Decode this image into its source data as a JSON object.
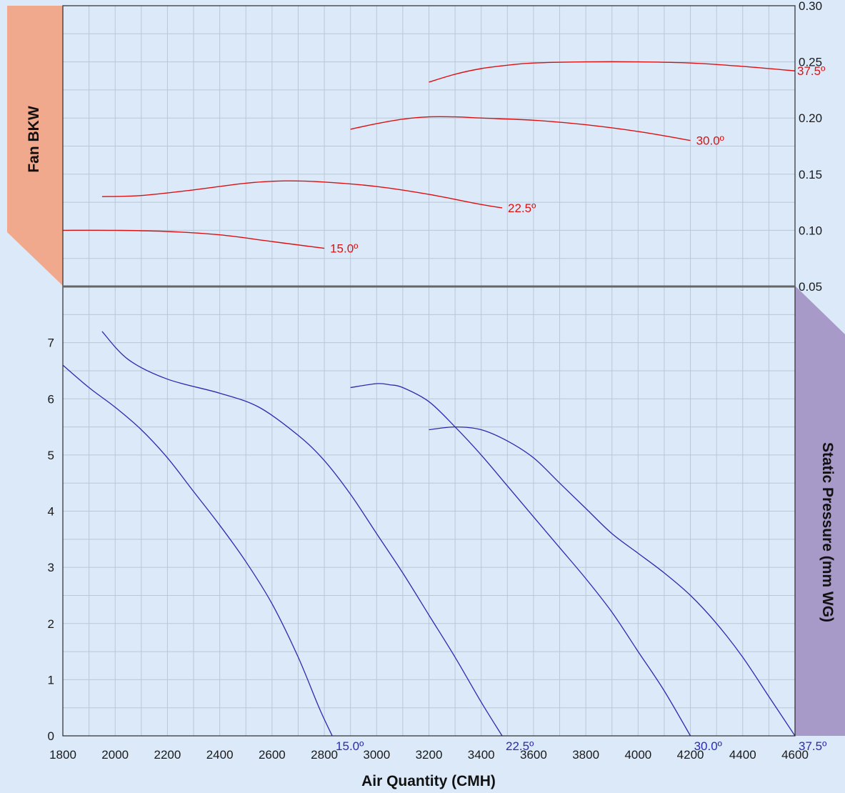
{
  "chart_data": [
    {
      "type": "line",
      "panel": "top",
      "ylabel": "Fan BKW",
      "y_axis_side": "right",
      "ylim": [
        0.05,
        0.3
      ],
      "y_ticks": [
        "0.05",
        "0.10",
        "0.15",
        "0.20",
        "0.25",
        "0.30"
      ],
      "xlim": [
        1800,
        4600
      ],
      "grid": true,
      "color": "#dd1111",
      "series": [
        {
          "name": "15.0º",
          "x": [
            1800,
            2000,
            2200,
            2400,
            2600,
            2800
          ],
          "y": [
            0.1,
            0.1,
            0.099,
            0.096,
            0.09,
            0.084
          ]
        },
        {
          "name": "22.5º",
          "x": [
            1950,
            2100,
            2300,
            2500,
            2650,
            2800,
            3000,
            3200,
            3400,
            3480
          ],
          "y": [
            0.13,
            0.131,
            0.136,
            0.142,
            0.144,
            0.143,
            0.139,
            0.132,
            0.123,
            0.12
          ]
        },
        {
          "name": "30.0º",
          "x": [
            2900,
            3000,
            3100,
            3200,
            3300,
            3400,
            3600,
            3800,
            4000,
            4200
          ],
          "y": [
            0.19,
            0.195,
            0.199,
            0.201,
            0.201,
            0.2,
            0.198,
            0.194,
            0.188,
            0.18
          ]
        },
        {
          "name": "37.5º",
          "x": [
            3200,
            3300,
            3400,
            3500,
            3600,
            3800,
            4000,
            4200,
            4400,
            4600
          ],
          "y": [
            0.232,
            0.239,
            0.244,
            0.247,
            0.249,
            0.25,
            0.25,
            0.249,
            0.246,
            0.242
          ]
        }
      ]
    },
    {
      "type": "line",
      "panel": "bottom",
      "ylabel": "Static Pressure (mm WG)",
      "xlabel": "Air Quantity (CMH)",
      "ylim": [
        0,
        8
      ],
      "y_ticks": [
        "0",
        "1",
        "2",
        "3",
        "4",
        "5",
        "6",
        "7"
      ],
      "xlim": [
        1800,
        4600
      ],
      "x_ticks": [
        "1800",
        "2000",
        "2200",
        "2400",
        "2600",
        "2800",
        "3000",
        "3200",
        "3400",
        "3600",
        "3800",
        "4000",
        "4200",
        "4400",
        "4600"
      ],
      "grid": true,
      "color": "#2b2bb0",
      "series": [
        {
          "name": "15.0º",
          "x": [
            1800,
            1900,
            2000,
            2100,
            2200,
            2300,
            2400,
            2500,
            2600,
            2700,
            2780,
            2830
          ],
          "y": [
            6.6,
            6.2,
            5.85,
            5.45,
            4.95,
            4.35,
            3.75,
            3.1,
            2.35,
            1.4,
            0.5,
            0.0
          ]
        },
        {
          "name": "22.5º",
          "x": [
            1950,
            2050,
            2200,
            2400,
            2550,
            2700,
            2800,
            2900,
            3000,
            3100,
            3200,
            3300,
            3400,
            3480
          ],
          "y": [
            7.2,
            6.7,
            6.35,
            6.1,
            5.85,
            5.35,
            4.9,
            4.3,
            3.6,
            2.9,
            2.15,
            1.4,
            0.6,
            0.0
          ]
        },
        {
          "name": "30.0º",
          "x": [
            2900,
            3000,
            3050,
            3100,
            3200,
            3300,
            3400,
            3500,
            3600,
            3700,
            3800,
            3900,
            4000,
            4100,
            4200
          ],
          "y": [
            6.2,
            6.27,
            6.25,
            6.2,
            5.95,
            5.5,
            5.0,
            4.45,
            3.9,
            3.35,
            2.8,
            2.2,
            1.5,
            0.8,
            0.0
          ]
        },
        {
          "name": "37.5º",
          "x": [
            3200,
            3300,
            3400,
            3500,
            3600,
            3700,
            3800,
            3900,
            4000,
            4100,
            4200,
            4300,
            4400,
            4500,
            4600
          ],
          "y": [
            5.45,
            5.5,
            5.45,
            5.25,
            4.95,
            4.5,
            4.05,
            3.6,
            3.25,
            2.9,
            2.5,
            2.0,
            1.4,
            0.7,
            0.0
          ]
        }
      ]
    }
  ],
  "colors": {
    "background": "#dbe9f8",
    "grid": "#b9c7d8",
    "divider": "#666666",
    "fan_bkw_tab": "#f1a98e",
    "static_pressure_tab": "#a89ac8",
    "power_curves": "#dd1111",
    "pressure_curves": "#2b2bb0"
  }
}
